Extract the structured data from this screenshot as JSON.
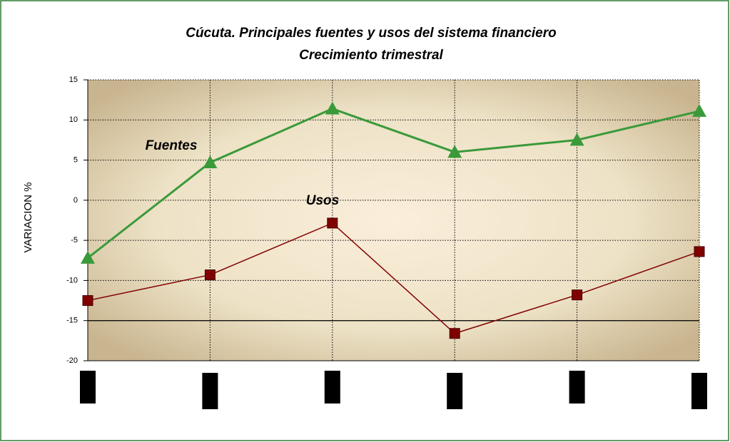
{
  "chart_data": {
    "type": "line",
    "title": "Cúcuta. Principales fuentes y usos del sistema financiero",
    "subtitle": "Crecimiento trimestral",
    "y_label": "VARIACION %",
    "categories": [
      null,
      null,
      null,
      null,
      null,
      null
    ],
    "series": [
      {
        "name": "Fuentes",
        "color": "#3a9a3a",
        "marker": "triangle",
        "values": [
          -7.2,
          4.7,
          11.4,
          6.0,
          7.5,
          11.1
        ]
      },
      {
        "name": "Usos",
        "color": "#800000",
        "marker": "square",
        "values": [
          -12.5,
          -9.3,
          -2.85,
          -16.6,
          -11.8,
          -6.4
        ]
      }
    ],
    "ylim": [
      -20,
      15
    ],
    "yticks": [
      -20,
      -15,
      -10,
      -5,
      0,
      5,
      10,
      15
    ],
    "x_axis_crossing": -15,
    "grid": true
  }
}
